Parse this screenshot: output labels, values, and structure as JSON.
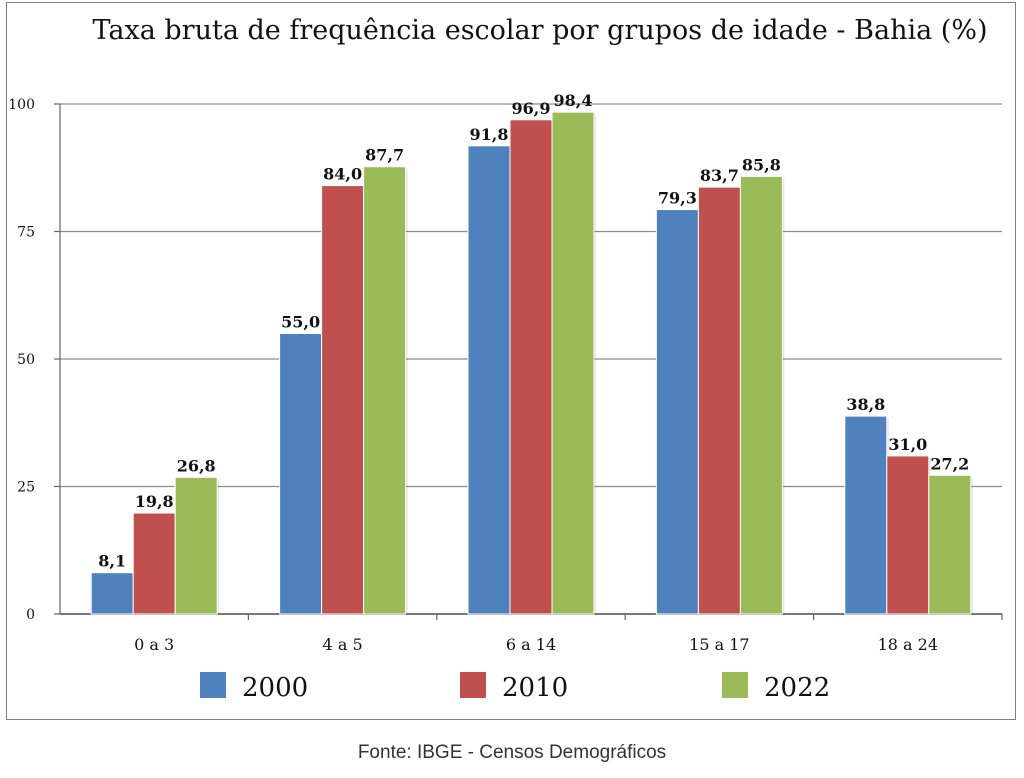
{
  "chart_data": {
    "type": "bar",
    "title": "Taxa bruta de frequência escolar por grupos de idade - Bahia (%)",
    "categories": [
      "0 a 3",
      "4 a 5",
      "6 a 14",
      "15 a 17",
      "18 a 24"
    ],
    "series": [
      {
        "name": "2000",
        "color": "#4f81bd",
        "values": [
          8.1,
          55.0,
          91.8,
          79.3,
          38.8
        ],
        "labels": [
          "8,1",
          "55,0",
          "91,8",
          "79,3",
          "38,8"
        ]
      },
      {
        "name": "2010",
        "color": "#c0504d",
        "values": [
          19.8,
          84.0,
          96.9,
          83.7,
          31.0
        ],
        "labels": [
          "19,8",
          "84,0",
          "96,9",
          "83,7",
          "31,0"
        ]
      },
      {
        "name": "2022",
        "color": "#9bbb59",
        "values": [
          26.8,
          87.7,
          98.4,
          85.8,
          27.2
        ],
        "labels": [
          "26,8",
          "87,7",
          "98,4",
          "85,8",
          "27,2"
        ]
      }
    ],
    "yticks": [
      "0",
      "25",
      "50",
      "75",
      "100"
    ],
    "ylim": [
      0,
      100
    ],
    "grid": true,
    "legend_position": "bottom"
  },
  "source": "Fonte: IBGE - Censos Demográficos"
}
